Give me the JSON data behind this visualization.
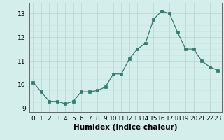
{
  "x": [
    0,
    1,
    2,
    3,
    4,
    5,
    6,
    7,
    8,
    9,
    10,
    11,
    12,
    13,
    14,
    15,
    16,
    17,
    18,
    19,
    20,
    21,
    22,
    23
  ],
  "y": [
    10.1,
    9.7,
    9.3,
    9.3,
    9.2,
    9.3,
    9.7,
    9.7,
    9.75,
    9.9,
    10.45,
    10.45,
    11.1,
    11.5,
    11.75,
    12.75,
    13.1,
    13.0,
    12.2,
    11.5,
    11.5,
    11.0,
    10.75,
    10.6
  ],
  "title": "",
  "xlabel": "Humidex (Indice chaleur)",
  "ylabel": "",
  "xlim": [
    -0.5,
    23.5
  ],
  "ylim": [
    8.85,
    13.45
  ],
  "yticks": [
    9,
    10,
    11,
    12,
    13
  ],
  "xticks": [
    0,
    1,
    2,
    3,
    4,
    5,
    6,
    7,
    8,
    9,
    10,
    11,
    12,
    13,
    14,
    15,
    16,
    17,
    18,
    19,
    20,
    21,
    22,
    23
  ],
  "line_color": "#2e7d6e",
  "marker_color": "#2e7d6e",
  "bg_color": "#d4eeeb",
  "grid_major_color": "#c0d8d4",
  "grid_minor_color": "#c8e2de",
  "axis_color": "#666666",
  "tick_fontsize": 6.5,
  "label_fontsize": 7.5
}
